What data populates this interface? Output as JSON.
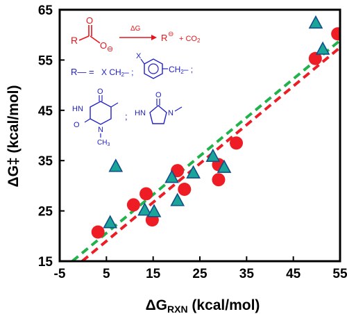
{
  "chart_data": {
    "type": "scatter",
    "xlabel_main": "ΔG",
    "xlabel_sub": "RXN",
    "xlabel_unit": " (kcal/mol)",
    "ylabel": "ΔG‡ (kcal/mol)",
    "xlim": [
      -5,
      55
    ],
    "ylim": [
      15,
      65
    ],
    "xticks": [
      "-5",
      "5",
      "15",
      "25",
      "35",
      "45",
      "55"
    ],
    "yticks": [
      "15",
      "25",
      "35",
      "45",
      "55",
      "65"
    ],
    "grid": false,
    "colors": {
      "circle": "#ee1c25",
      "triangle_fill": "#1aa598",
      "triangle_stroke": "#0f4f8a",
      "green_line": "#22b24c",
      "red_line": "#ee1c25",
      "scheme_red": "#e8141b",
      "scheme_blue": "#2020c8"
    },
    "series": [
      {
        "marker": "circle",
        "points": [
          [
            3.2,
            20.8
          ],
          [
            10.8,
            26.2
          ],
          [
            13.5,
            28.4
          ],
          [
            14.8,
            23.2
          ],
          [
            20.2,
            33.0
          ],
          [
            21.7,
            29.3
          ],
          [
            29.0,
            34.2
          ],
          [
            29.0,
            31.2
          ],
          [
            32.8,
            38.5
          ],
          [
            49.7,
            55.3
          ],
          [
            54.5,
            60.2
          ]
        ]
      },
      {
        "marker": "triangle",
        "points": [
          [
            5.8,
            22.6
          ],
          [
            7.0,
            33.8
          ],
          [
            13.2,
            25.1
          ],
          [
            15.2,
            24.8
          ],
          [
            19.0,
            31.6
          ],
          [
            20.2,
            27.0
          ],
          [
            23.6,
            32.5
          ],
          [
            27.8,
            35.8
          ],
          [
            30.2,
            33.6
          ],
          [
            49.8,
            62.3
          ],
          [
            51.3,
            57.1
          ]
        ]
      }
    ],
    "fit_lines": [
      {
        "color_key": "green_line",
        "points": [
          [
            -2.3,
            15.0
          ],
          [
            55.0,
            58.9
          ]
        ]
      },
      {
        "color_key": "red_line",
        "points": [
          [
            -0.2,
            15.0
          ],
          [
            55.0,
            57.5
          ]
        ]
      }
    ],
    "annotations": {
      "reaction_R": "R",
      "reaction_O": "O",
      "reaction_Ominus": "O",
      "reaction_minus": "⊖",
      "reaction_dG": "ΔG",
      "reaction_product": "R",
      "reaction_plus_co2": "+ CO",
      "reaction_co2_sub": "2",
      "r_def": "R— =",
      "r_xch2": "X CH",
      "r_xch2_sub": "2",
      "r_xch2_tail": "– ;",
      "r_benzyl_X": "X",
      "r_benzyl_ch2": "CH",
      "r_benzyl_ch2_sub": "2",
      "r_benzyl_tail": "– ;",
      "thy_O1": "O",
      "thy_O2": "O",
      "thy_HN": "HN",
      "thy_N": "N",
      "thy_CH3": "CH",
      "thy_CH3_sub": "3",
      "semicolon": ";",
      "imid_O": "O",
      "imid_HN": "HN",
      "imid_N": "N"
    }
  }
}
